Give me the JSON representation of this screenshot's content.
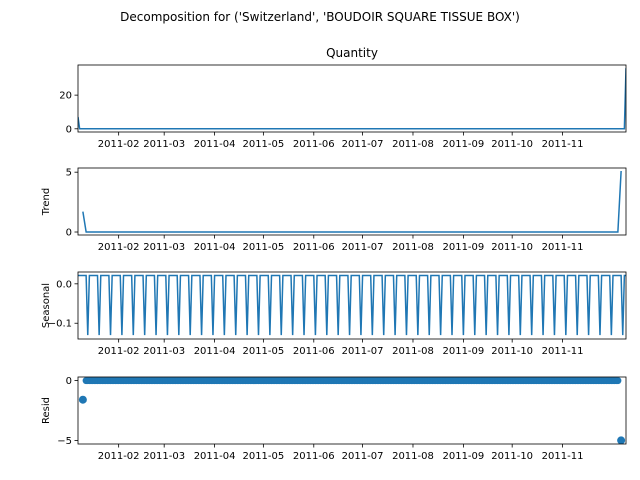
{
  "suptitle": "Decomposition for ('Switzerland', 'BOUDOIR SQUARE TISSUE BOX')",
  "chart_data": [
    {
      "type": "line",
      "title": "Quantity",
      "ylabel": "",
      "x_range": [
        "2011-01-07",
        "2011-12-10"
      ],
      "ylim": [
        -1.9,
        37.9
      ],
      "y_ticks": [
        0,
        20
      ],
      "y_tick_labels": [
        "0",
        "20"
      ],
      "x_ticks": [
        "2011-02-01",
        "2011-03-01",
        "2011-04-01",
        "2011-05-01",
        "2011-06-01",
        "2011-07-01",
        "2011-08-01",
        "2011-09-01",
        "2011-10-01",
        "2011-11-01"
      ],
      "x_tick_labels": [
        "2011-02",
        "2011-03",
        "2011-04",
        "2011-05",
        "2011-06",
        "2011-07",
        "2011-08",
        "2011-09",
        "2011-10",
        "2011-11"
      ],
      "series": [
        {
          "x": [
            "2011-01-07",
            "2011-01-08",
            "2011-12-08",
            "2011-12-09",
            "2011-12-10"
          ],
          "y": [
            7,
            0,
            0,
            0,
            36
          ],
          "color": "#1f77b4"
        }
      ]
    },
    {
      "type": "line",
      "title": "",
      "ylabel": "Trend",
      "x_range": [
        "2011-01-07",
        "2011-12-10"
      ],
      "ylim": [
        -0.25,
        5.35
      ],
      "y_ticks": [
        0,
        5
      ],
      "y_tick_labels": [
        "0",
        "5"
      ],
      "x_ticks": [
        "2011-02-01",
        "2011-03-01",
        "2011-04-01",
        "2011-05-01",
        "2011-06-01",
        "2011-07-01",
        "2011-08-01",
        "2011-09-01",
        "2011-10-01",
        "2011-11-01"
      ],
      "x_tick_labels": [
        "2011-02",
        "2011-03",
        "2011-04",
        "2011-05",
        "2011-06",
        "2011-07",
        "2011-08",
        "2011-09",
        "2011-10",
        "2011-11"
      ],
      "series": [
        {
          "x": [
            "2011-01-10",
            "2011-01-12",
            "2011-12-05",
            "2011-12-07"
          ],
          "y": [
            1.7,
            0,
            0,
            5.1
          ],
          "color": "#1f77b4"
        }
      ]
    },
    {
      "type": "line",
      "title": "",
      "ylabel": "Seasonal",
      "x_range": [
        "2011-01-07",
        "2011-12-10"
      ],
      "ylim": [
        -0.14,
        0.03
      ],
      "y_ticks": [
        0.0,
        -0.1
      ],
      "y_tick_labels": [
        "0.0",
        "−0.1"
      ],
      "x_ticks": [
        "2011-02-01",
        "2011-03-01",
        "2011-04-01",
        "2011-05-01",
        "2011-06-01",
        "2011-07-01",
        "2011-08-01",
        "2011-09-01",
        "2011-10-01",
        "2011-11-01"
      ],
      "x_tick_labels": [
        "2011-02",
        "2011-03",
        "2011-04",
        "2011-05",
        "2011-06",
        "2011-07",
        "2011-08",
        "2011-09",
        "2011-10",
        "2011-11"
      ],
      "period_days": 7,
      "pattern": [
        0.021,
        0.021,
        0.021,
        0.021,
        0.021,
        0.021,
        -0.13
      ],
      "series": [
        {
          "x_start": "2011-01-07",
          "x_end": "2011-12-10",
          "color": "#1f77b4"
        }
      ]
    },
    {
      "type": "scatter",
      "title": "",
      "ylabel": "Resid",
      "x_range": [
        "2011-01-07",
        "2011-12-10"
      ],
      "ylim": [
        -5.3,
        0.3
      ],
      "y_ticks": [
        0,
        -5
      ],
      "y_tick_labels": [
        "0",
        "−5"
      ],
      "x_ticks": [
        "2011-02-01",
        "2011-03-01",
        "2011-04-01",
        "2011-05-01",
        "2011-06-01",
        "2011-07-01",
        "2011-08-01",
        "2011-09-01",
        "2011-10-01",
        "2011-11-01"
      ],
      "x_tick_labels": [
        "2011-02",
        "2011-03",
        "2011-04",
        "2011-05",
        "2011-06",
        "2011-07",
        "2011-08",
        "2011-09",
        "2011-10",
        "2011-11"
      ],
      "baseline_value": 0,
      "baseline_x": [
        "2011-01-12",
        "2011-12-05"
      ],
      "points": [
        {
          "x": "2011-01-10",
          "y": -1.6
        },
        {
          "x": "2011-12-07",
          "y": -5.0
        }
      ],
      "color": "#1f77b4"
    }
  ]
}
